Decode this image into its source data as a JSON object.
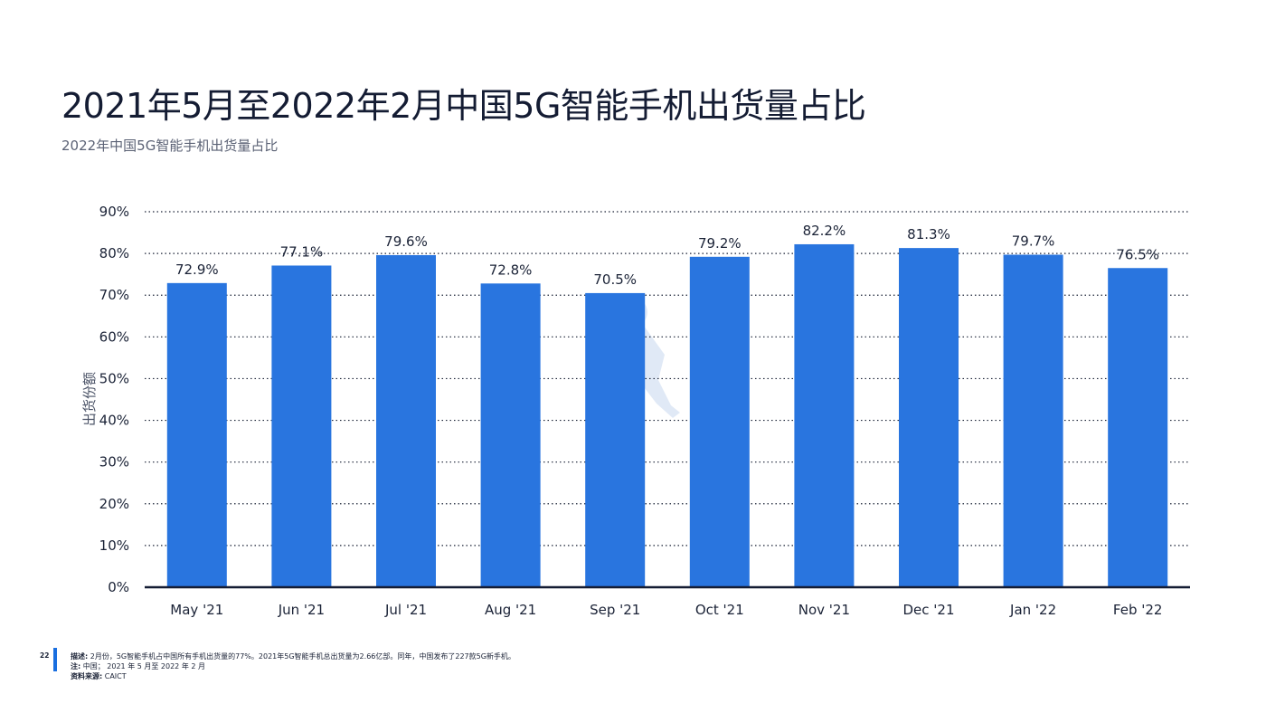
{
  "title": "2021年5月至2022年2月中国5G智能手机出货量占比",
  "subtitle": "2022年中国5G智能手机出货量占比",
  "colors": {
    "bar": "#2975df",
    "axis": "#141c33",
    "grid": "#1a2236"
  },
  "chart_data": {
    "type": "bar",
    "title": "2021年5月至2022年2月中国5G智能手机出货量占比",
    "subtitle": "2022年中国5G智能手机出货量占比",
    "xlabel": "",
    "ylabel": "出货份额",
    "categories": [
      "May '21",
      "Jun '21",
      "Jul '21",
      "Aug '21",
      "Sep '21",
      "Oct '21",
      "Nov '21",
      "Dec '21",
      "Jan '22",
      "Feb '22"
    ],
    "values": [
      72.9,
      77.1,
      79.6,
      72.8,
      70.5,
      79.2,
      82.2,
      81.3,
      79.7,
      76.5
    ],
    "value_labels": [
      "72.9%",
      "77.1%",
      "79.6%",
      "72.8%",
      "70.5%",
      "79.2%",
      "82.2%",
      "81.3%",
      "79.7%",
      "76.5%"
    ],
    "y_ticks": [
      0,
      10,
      20,
      30,
      40,
      50,
      60,
      70,
      80,
      90
    ],
    "y_tick_labels": [
      "0%",
      "10%",
      "20%",
      "30%",
      "40%",
      "50%",
      "60%",
      "70%",
      "80%",
      "90%"
    ],
    "ylim": [
      0,
      90
    ],
    "grid": true,
    "legend": "none"
  },
  "footer": {
    "page_number": "22",
    "description_label": "描述:",
    "description": "2月份，5G智能手机占中国所有手机出货量的77%。2021年5G智能手机总出货量为2.66亿部。同年，中国发布了227款5G新手机。",
    "note_label": "注:",
    "note": "中国； 2021 年 5 月至 2022 年 2 月",
    "source_label": "资料来源:",
    "source": "CAICT"
  }
}
